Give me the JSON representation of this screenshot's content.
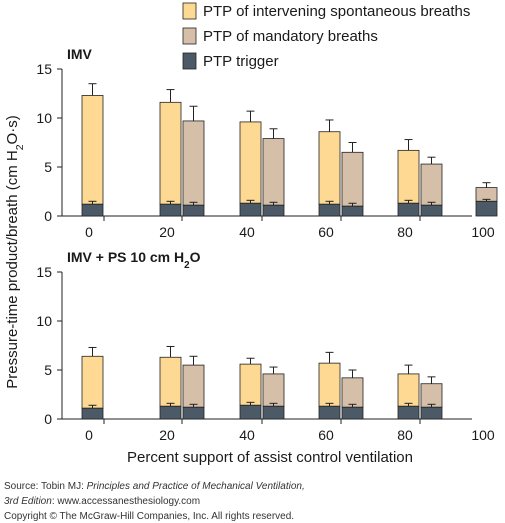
{
  "chart_data": {
    "type": "bar",
    "stacked": true,
    "categories": [
      "0",
      "20",
      "40",
      "60",
      "80",
      "100"
    ],
    "xlabel": "Percent support of assist control ventilation",
    "ylabel": "Pressure-time product/breath (cm H2O·s)",
    "ylabel_parts": {
      "before": "Pressure-time product/breath (cm H",
      "sub": "2",
      "after": "O·s)"
    },
    "ylim": [
      0,
      15
    ],
    "yticks": [
      0,
      5,
      10,
      15
    ],
    "legend": {
      "placement": "top-right",
      "entries": [
        {
          "name": "PTP of intervening spontaneous breaths",
          "color": "#fdd993"
        },
        {
          "name": "PTP of mandatory breaths",
          "color": "#d6bfa8"
        },
        {
          "name": "PTP trigger",
          "color": "#4b5a66"
        }
      ]
    },
    "colors": {
      "spontaneous": "#fdd993",
      "mandatory": "#d6bfa8",
      "trigger": "#4b5a66",
      "stroke": "#222222"
    },
    "panels": [
      {
        "title": "IMV",
        "title_parts": {
          "before": "IMV",
          "sub": "",
          "after": ""
        },
        "spontaneous": {
          "total": [
            12.3,
            11.6,
            9.6,
            8.6,
            6.7,
            null
          ],
          "error": [
            1.2,
            1.3,
            1.1,
            1.2,
            1.1,
            null
          ],
          "trigger": [
            1.2,
            1.2,
            1.3,
            1.2,
            1.3,
            null
          ],
          "trigger_error": [
            0.3,
            0.3,
            0.3,
            0.3,
            0.3,
            null
          ]
        },
        "mandatory": {
          "total": [
            null,
            9.7,
            7.9,
            6.5,
            5.3,
            2.9
          ],
          "error": [
            null,
            1.5,
            1.0,
            1.0,
            0.7,
            0.5
          ],
          "trigger": [
            null,
            1.1,
            1.1,
            1.0,
            1.1,
            1.5
          ],
          "trigger_error": [
            null,
            0.3,
            0.3,
            0.3,
            0.3,
            0.2
          ]
        }
      },
      {
        "title": "IMV + PS 10 cm H2O",
        "title_parts": {
          "before": "IMV + PS 10 cm H",
          "sub": "2",
          "after": "O"
        },
        "spontaneous": {
          "total": [
            6.4,
            6.3,
            5.6,
            5.7,
            4.6,
            null
          ],
          "error": [
            0.9,
            1.1,
            0.6,
            1.1,
            0.9,
            null
          ],
          "trigger": [
            1.1,
            1.3,
            1.4,
            1.3,
            1.3,
            null
          ],
          "trigger_error": [
            0.3,
            0.3,
            0.3,
            0.3,
            0.3,
            null
          ]
        },
        "mandatory": {
          "total": [
            null,
            5.5,
            4.6,
            4.2,
            3.6,
            null
          ],
          "error": [
            null,
            0.9,
            0.7,
            0.8,
            0.7,
            null
          ],
          "trigger": [
            null,
            1.2,
            1.3,
            1.2,
            1.2,
            null
          ],
          "trigger_error": [
            null,
            0.3,
            0.3,
            0.3,
            0.3,
            null
          ]
        }
      }
    ]
  },
  "source": {
    "prefix": "Source: Tobin MJ: ",
    "book": "Principles and Practice of Mechanical Ventilation,",
    "edition": "3rd Edition",
    "suffix": ": www.accessanesthesiology.com",
    "copyright": "Copyright © The McGraw-Hill Companies, Inc. All rights reserved."
  }
}
